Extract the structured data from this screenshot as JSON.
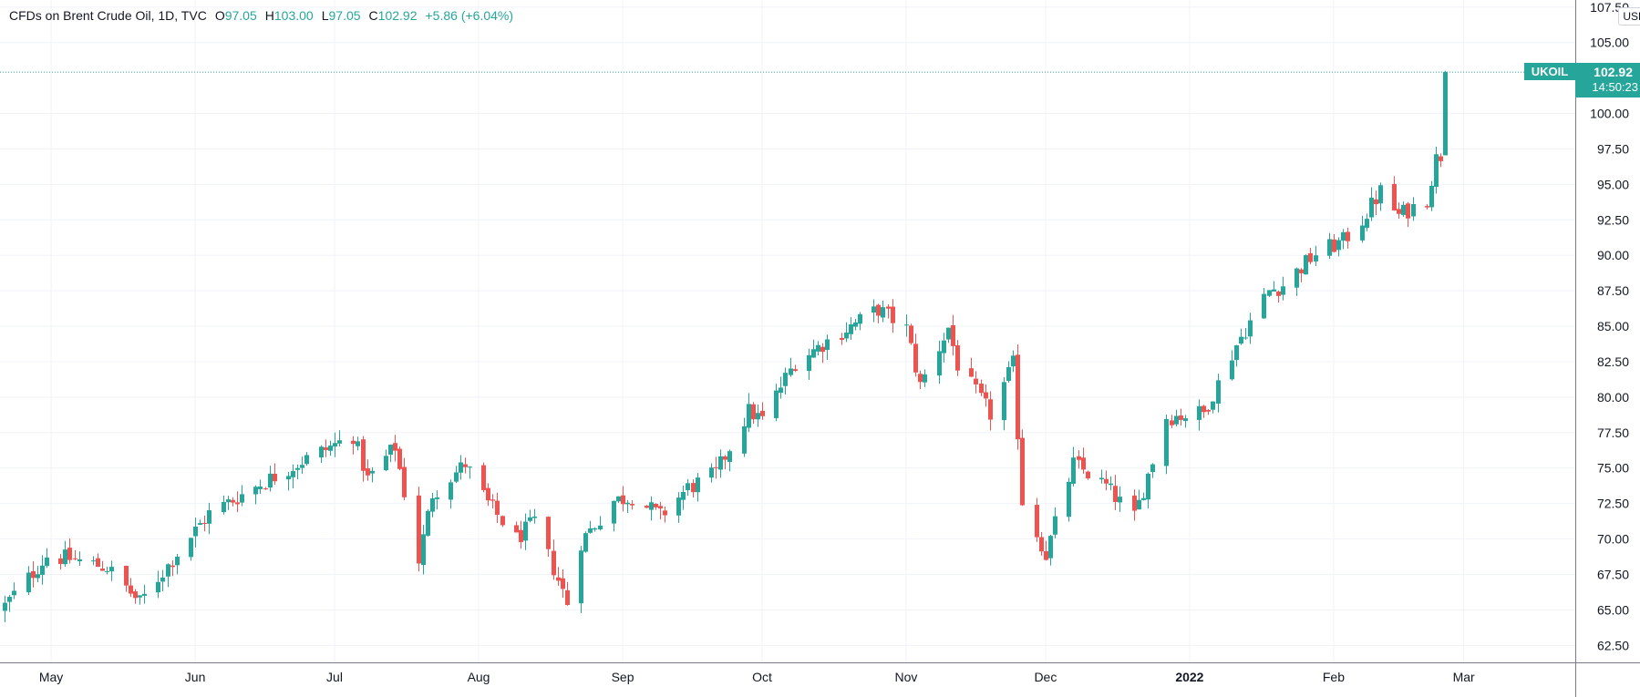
{
  "legend": {
    "title": "CFDs on Brent Crude Oil, 1D, TVC",
    "open_label": "O",
    "open": "97.05",
    "high_label": "H",
    "high": "103.00",
    "low_label": "L",
    "low": "97.05",
    "close_label": "C",
    "close": "102.92",
    "change": "+5.86 (+6.04%)"
  },
  "currency": "USD",
  "price_tag": {
    "symbol": "UKOIL",
    "price": "102.92",
    "countdown": "14:50:23"
  },
  "colors": {
    "up": "#26a69a",
    "down": "#ef5350",
    "grid": "#f0f3fa",
    "axis_text": "#131722"
  },
  "chart_data": {
    "type": "candlestick",
    "symbol": "UKOIL",
    "interval": "1D",
    "y_ticks": [
      "62.50",
      "65.00",
      "67.50",
      "70.00",
      "72.50",
      "75.00",
      "77.50",
      "80.00",
      "82.50",
      "85.00",
      "87.50",
      "90.00",
      "92.50",
      "95.00",
      "97.50",
      "100.00",
      "105.00",
      "107.50"
    ],
    "ylim": [
      61.3,
      108.0
    ],
    "x_ticks": [
      {
        "label": "May",
        "bold": false,
        "date": "2021-05-01"
      },
      {
        "label": "Jun",
        "bold": false,
        "date": "2021-06-01"
      },
      {
        "label": "Jul",
        "bold": false,
        "date": "2021-07-01"
      },
      {
        "label": "Aug",
        "bold": false,
        "date": "2021-08-01"
      },
      {
        "label": "Sep",
        "bold": false,
        "date": "2021-09-01"
      },
      {
        "label": "Oct",
        "bold": false,
        "date": "2021-10-01"
      },
      {
        "label": "Nov",
        "bold": false,
        "date": "2021-11-01"
      },
      {
        "label": "Dec",
        "bold": false,
        "date": "2021-12-01"
      },
      {
        "label": "2022",
        "bold": true,
        "date": "2022-01-01"
      },
      {
        "label": "Feb",
        "bold": false,
        "date": "2022-02-01"
      },
      {
        "label": "Mar",
        "bold": false,
        "date": "2022-03-01"
      }
    ],
    "xlim": [
      "2021-04-20",
      "2022-03-25"
    ],
    "last_price": 102.92,
    "anchors": [
      [
        "2021-04-21",
        65.3
      ],
      [
        "2021-04-30",
        68.8
      ],
      [
        "2021-05-05",
        68.6
      ],
      [
        "2021-05-13",
        68.0
      ],
      [
        "2021-05-20",
        65.5
      ],
      [
        "2021-05-28",
        69.0
      ],
      [
        "2021-06-04",
        71.8
      ],
      [
        "2021-06-15",
        73.9
      ],
      [
        "2021-06-24",
        75.5
      ],
      [
        "2021-07-05",
        77.3
      ],
      [
        "2021-07-08",
        74.2
      ],
      [
        "2021-07-14",
        76.5
      ],
      [
        "2021-07-19",
        68.5
      ],
      [
        "2021-07-22",
        73.2
      ],
      [
        "2021-07-29",
        75.3
      ],
      [
        "2021-08-03",
        72.5
      ],
      [
        "2021-08-09",
        70.0
      ],
      [
        "2021-08-13",
        71.2
      ],
      [
        "2021-08-20",
        65.5
      ],
      [
        "2021-08-23",
        69.8
      ],
      [
        "2021-08-30",
        72.7
      ],
      [
        "2021-09-03",
        73.0
      ],
      [
        "2021-09-09",
        71.6
      ],
      [
        "2021-09-15",
        73.6
      ],
      [
        "2021-09-21",
        74.6
      ],
      [
        "2021-09-28",
        79.0
      ],
      [
        "2021-10-01",
        78.4
      ],
      [
        "2021-10-08",
        82.5
      ],
      [
        "2021-10-19",
        84.8
      ],
      [
        "2021-10-26",
        86.2
      ],
      [
        "2021-11-01",
        84.8
      ],
      [
        "2021-11-04",
        80.8
      ],
      [
        "2021-11-10",
        84.9
      ],
      [
        "2021-11-12",
        82.3
      ],
      [
        "2021-11-19",
        78.8
      ],
      [
        "2021-11-24",
        82.3
      ],
      [
        "2021-11-26",
        72.7
      ],
      [
        "2021-12-01",
        68.9
      ],
      [
        "2021-12-07",
        75.3
      ],
      [
        "2021-12-14",
        73.7
      ],
      [
        "2021-12-20",
        71.5
      ],
      [
        "2021-12-27",
        78.6
      ],
      [
        "2022-01-04",
        78.9
      ],
      [
        "2022-01-11",
        83.7
      ],
      [
        "2022-01-18",
        87.5
      ],
      [
        "2022-01-21",
        87.9
      ],
      [
        "2022-01-28",
        90.1
      ],
      [
        "2022-02-03",
        91.0
      ],
      [
        "2022-02-07",
        92.5
      ],
      [
        "2022-02-11",
        94.5
      ],
      [
        "2022-02-15",
        92.8
      ],
      [
        "2022-02-21",
        94.0
      ],
      [
        "2022-02-23",
        96.8
      ],
      [
        "2022-02-24",
        97.05
      ]
    ]
  }
}
